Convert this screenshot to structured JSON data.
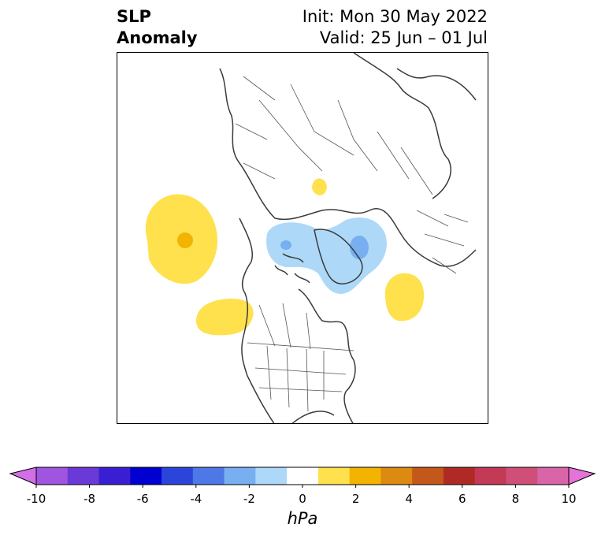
{
  "title": {
    "variable_line1": "SLP",
    "variable_line2": "Anomaly",
    "init": "Init: Mon 30 May 2022",
    "valid": "Valid: 25 Jun – 01 Jul"
  },
  "map": {
    "projection": "north-polar-stereographic",
    "region": "North America / Arctic",
    "anomaly_areas": [
      {
        "name": "north-pacific-high",
        "sign": "positive",
        "peak_hpa": 2
      },
      {
        "name": "ne-pacific-high",
        "sign": "positive",
        "peak_hpa": 1
      },
      {
        "name": "north-atlantic-high",
        "sign": "positive",
        "peak_hpa": 1
      },
      {
        "name": "siberia-high",
        "sign": "positive",
        "peak_hpa": 2
      },
      {
        "name": "arctic-low",
        "sign": "negative",
        "peak_hpa": -2
      }
    ]
  },
  "colorbar": {
    "ticks": [
      "-10",
      "-8",
      "-6",
      "-4",
      "-2",
      "0",
      "2",
      "4",
      "6",
      "8",
      "10"
    ],
    "units": "hPa",
    "colors": [
      "#d26ee8",
      "#9f55e0",
      "#6b39d7",
      "#3a1fd2",
      "#0000d0",
      "#2b45da",
      "#4d78e6",
      "#78aff0",
      "#aed8f7",
      "#ffffff",
      "#ffe14d",
      "#f2b400",
      "#dc8a12",
      "#c4581a",
      "#b02a25",
      "#c23a55",
      "#cf4f78",
      "#d965a8",
      "#e673d8"
    ],
    "extend": "both"
  }
}
